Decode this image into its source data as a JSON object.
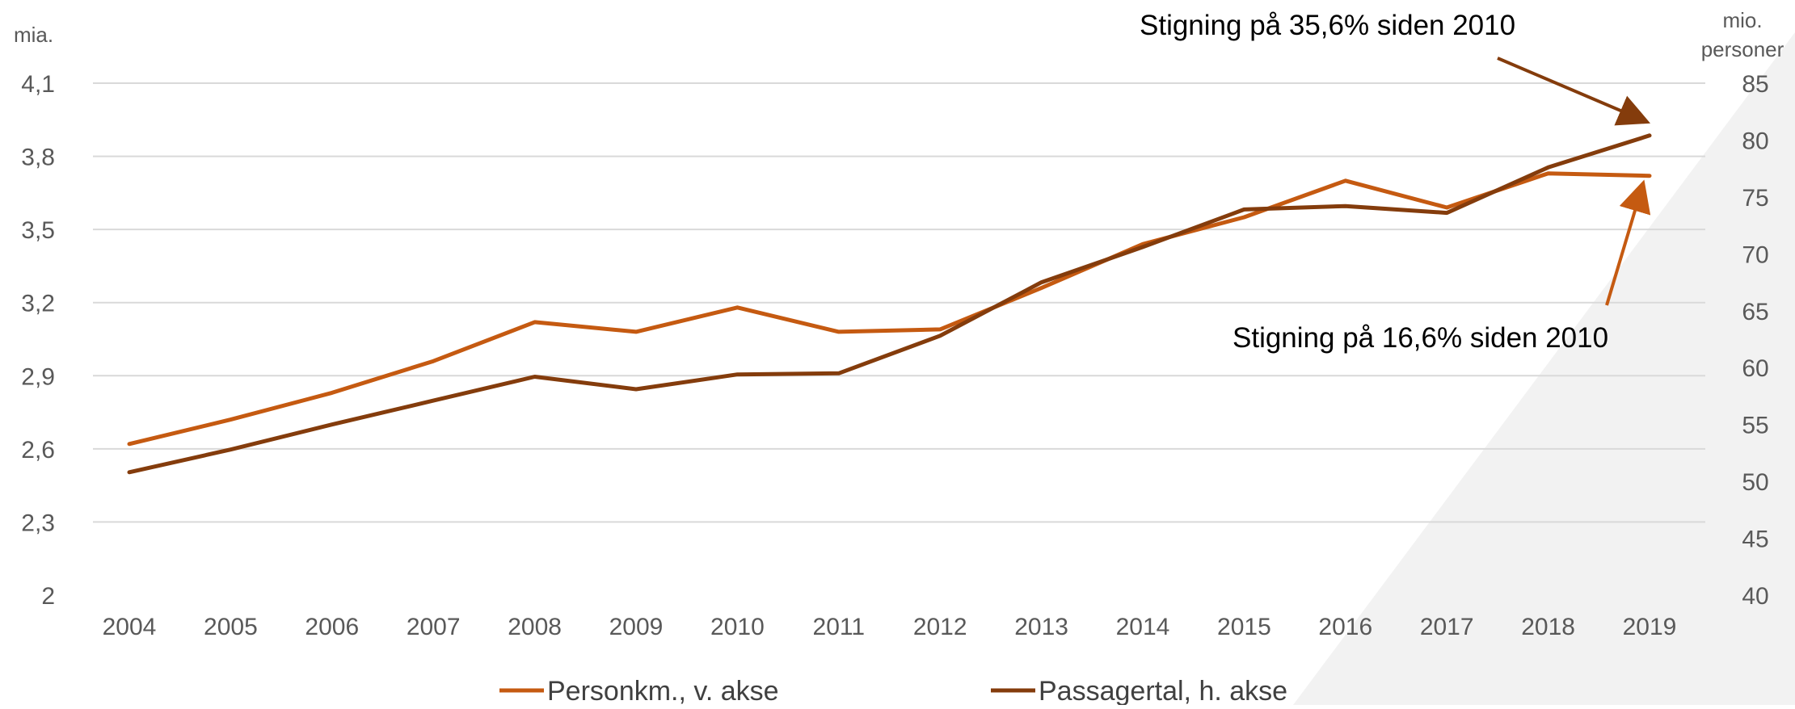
{
  "chart_data": {
    "type": "line",
    "categories": [
      "2004",
      "2005",
      "2006",
      "2007",
      "2008",
      "2009",
      "2010",
      "2011",
      "2012",
      "2013",
      "2014",
      "2015",
      "2016",
      "2017",
      "2018",
      "2019"
    ],
    "series": [
      {
        "name": "Personkm., v. akse",
        "axis": "left",
        "color": "#c55a11",
        "values": [
          2.62,
          2.72,
          2.83,
          2.96,
          3.12,
          3.08,
          3.18,
          3.08,
          3.09,
          3.26,
          3.44,
          3.55,
          3.7,
          3.59,
          3.73,
          3.72
        ]
      },
      {
        "name": "Passagertal, h. akse",
        "axis": "right",
        "color": "#843c0c",
        "values": [
          50.8,
          52.8,
          55.0,
          57.1,
          59.2,
          58.1,
          59.4,
          59.5,
          62.8,
          67.5,
          70.6,
          73.9,
          74.2,
          73.6,
          77.6,
          80.4
        ]
      }
    ],
    "y_left": {
      "unit": "mia.",
      "ylim": [
        2,
        4.1
      ],
      "ticks": [
        2,
        2.3,
        2.6,
        2.9,
        3.2,
        3.5,
        3.8,
        4.1
      ],
      "tick_labels": [
        "2",
        "2,3",
        "2,6",
        "2,9",
        "3,2",
        "3,5",
        "3,8",
        "4,1"
      ]
    },
    "y_right": {
      "unit_line1": "mio.",
      "unit_line2": "personer",
      "ylim": [
        40,
        85
      ],
      "ticks": [
        40,
        45,
        50,
        55,
        60,
        65,
        70,
        75,
        80,
        85
      ],
      "tick_labels": [
        "40",
        "45",
        "50",
        "55",
        "60",
        "65",
        "70",
        "75",
        "80",
        "85"
      ]
    },
    "annotations": [
      {
        "text": "Stigning på 35,6% siden 2010",
        "series": "Passagertal, h. akse"
      },
      {
        "text": "Stigning på 16,6% siden 2010",
        "series": "Personkm., v. akse"
      }
    ],
    "legend_position": "bottom",
    "grid": true,
    "gridline_color": "#d9d9d9"
  }
}
